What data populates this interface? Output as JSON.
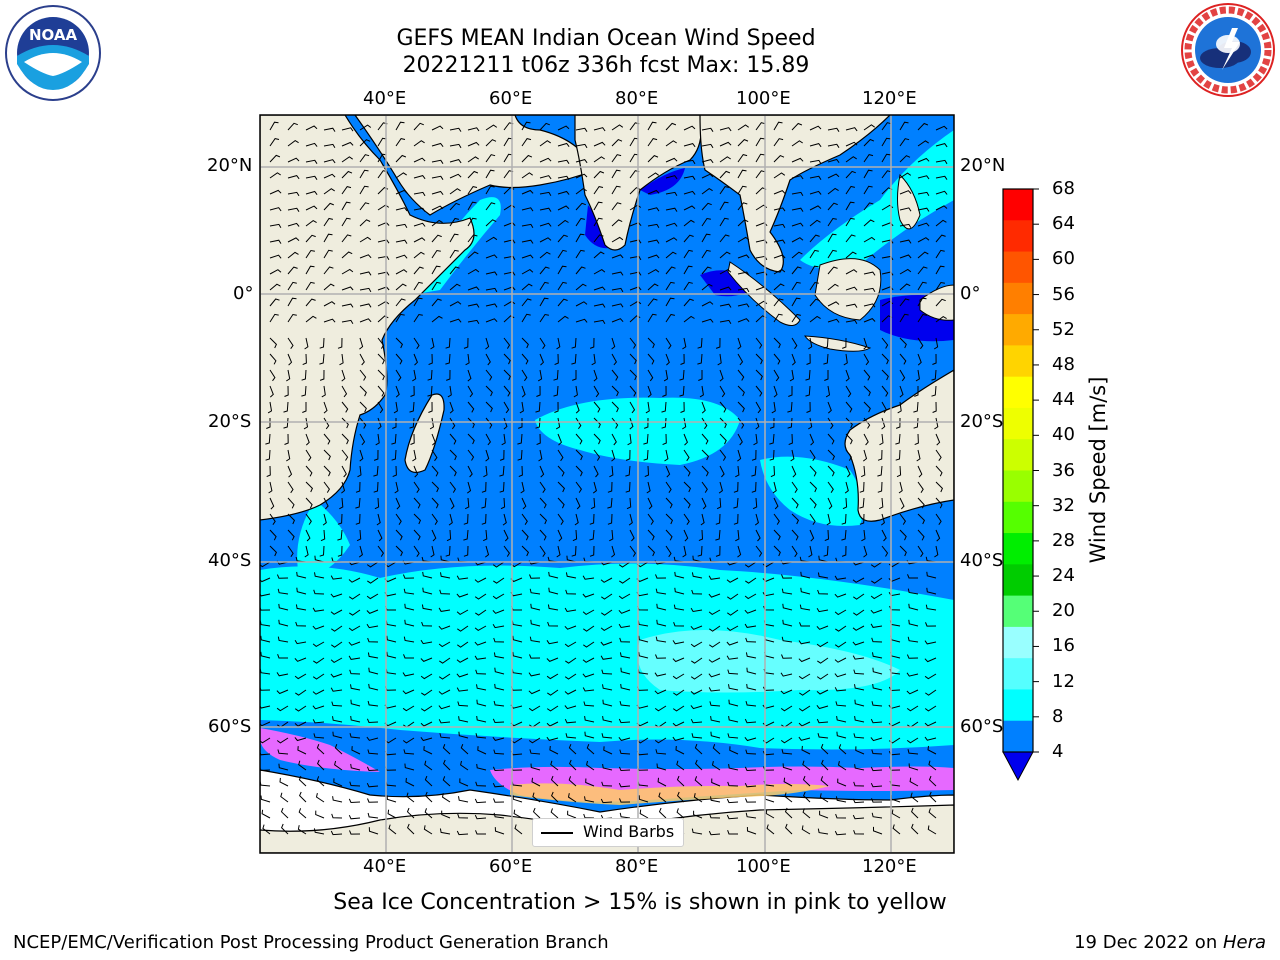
{
  "header": {
    "title_line1": "GEFS MEAN Indian Ocean Wind Speed",
    "title_line2": "20221211 t06z 336h fcst   Max: 15.89"
  },
  "logos": {
    "left": "NOAA",
    "left_ring_text": "NATIONAL OCEANIC AND ATMOSPHERIC ADMINISTRATION · U.S. DEPARTMENT OF COMMERCE",
    "right_ring_text": "NATIONAL WEATHER SERVICE"
  },
  "map": {
    "lon_ticks": [
      "40°E",
      "60°E",
      "80°E",
      "100°E",
      "120°E"
    ],
    "lat_ticks": [
      "20°N",
      "0°",
      "20°S",
      "40°S",
      "60°S"
    ],
    "lat_range": [
      "27°N",
      "75°S"
    ],
    "lon_range": [
      "20°E",
      "130°E"
    ],
    "colors": {
      "land": "#efedde",
      "ocean_low": "#0080ff",
      "ocean_mid": "#00ffff",
      "ice": "#ff66ff"
    },
    "legend_label": "Wind Barbs"
  },
  "colorbar": {
    "label": "Wind Speed [m/s]",
    "ticks": [
      "68",
      "64",
      "60",
      "56",
      "52",
      "48",
      "44",
      "40",
      "36",
      "32",
      "28",
      "24",
      "20",
      "16",
      "12",
      "8",
      "4"
    ],
    "colors": [
      "#ff0000",
      "#ff2a00",
      "#ff5500",
      "#ff7f00",
      "#ffaa00",
      "#ffd400",
      "#ffff00",
      "#eeff00",
      "#ccff00",
      "#99ff00",
      "#55ff00",
      "#00ee00",
      "#00cc00",
      "#55ff77",
      "#99ffff",
      "#55ffff",
      "#00ffff",
      "#0080ff"
    ],
    "under_color": "#0000ee"
  },
  "caption": "Sea Ice Concentration > 15% is shown in pink to yellow",
  "footer": {
    "left": "NCEP/EMC/Verification Post Processing Product Generation Branch",
    "right_date": "19 Dec 2022 on ",
    "right_machine": "Hera"
  }
}
